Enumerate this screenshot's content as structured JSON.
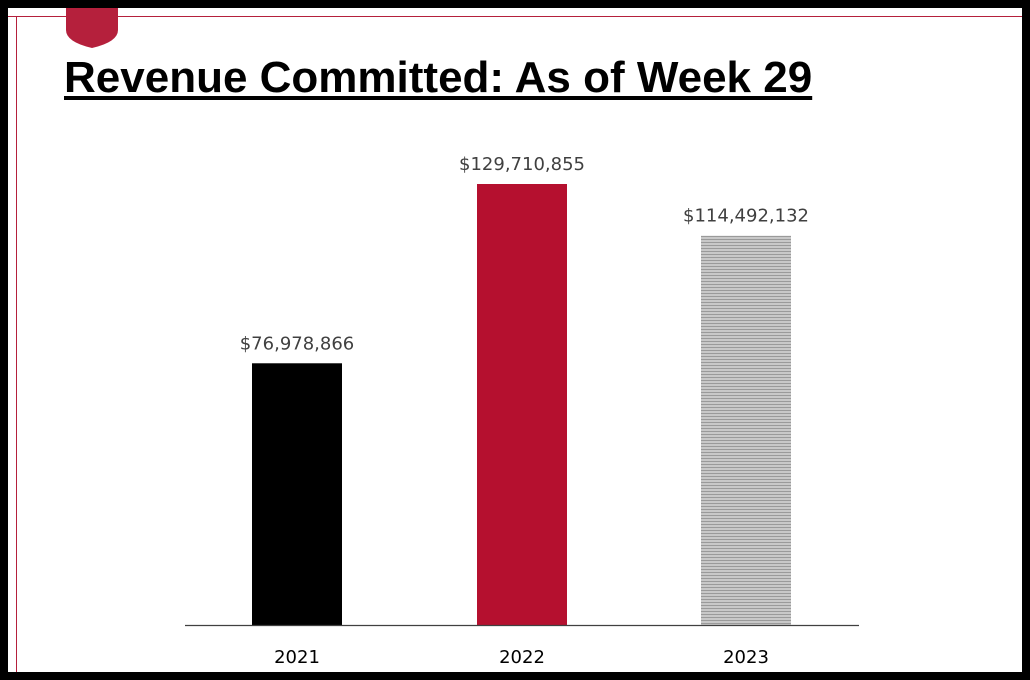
{
  "slide": {
    "title": "Revenue Committed: As of Week 29"
  },
  "colors": {
    "accent": "#b5203c",
    "frame": "#000000",
    "background": "#ffffff"
  },
  "chart_data": {
    "type": "bar",
    "title": "",
    "xlabel": "",
    "ylabel": "",
    "categories": [
      "2021",
      "2022",
      "2023"
    ],
    "values": [
      76978866,
      129710855,
      114492132
    ],
    "data_labels": [
      "$76,978,866",
      "$129,710,855",
      "$114,492,132"
    ],
    "bar_colors": [
      "#000000",
      "#b5102f",
      "#b3b3b3"
    ],
    "bar_fills": [
      "solid",
      "solid",
      "hatched"
    ],
    "ylim": [
      0,
      129710855
    ],
    "y_axis_visible": false,
    "grid": false,
    "legend": "none"
  }
}
